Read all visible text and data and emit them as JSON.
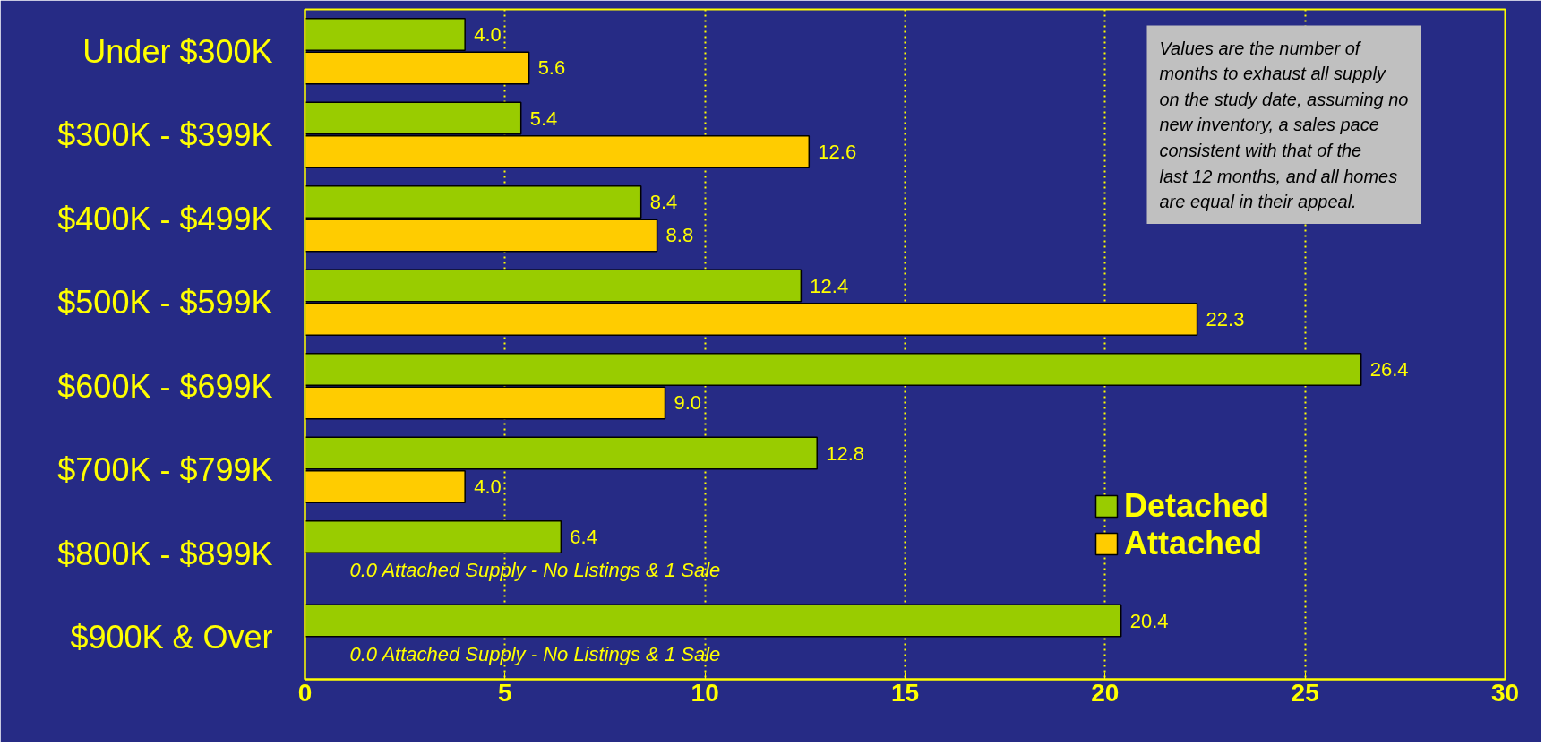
{
  "chart_data": {
    "type": "bar",
    "orientation": "horizontal",
    "categories": [
      "Under $300K",
      "$300K - $399K",
      "$400K - $499K",
      "$500K - $599K",
      "$600K - $699K",
      "$700K - $799K",
      "$800K - $899K",
      "$900K & Over"
    ],
    "series": [
      {
        "name": "Detached",
        "color": "#99cc00",
        "values": [
          4.0,
          5.4,
          8.4,
          12.4,
          26.4,
          12.8,
          6.4,
          20.4
        ],
        "value_labels": [
          "4.0",
          "5.4",
          "8.4",
          "12.4",
          "26.4",
          "12.8",
          "6.4",
          "20.4"
        ]
      },
      {
        "name": "Attached",
        "color": "#ffcc00",
        "values": [
          5.6,
          12.6,
          8.8,
          22.3,
          9.0,
          4.0,
          null,
          null
        ],
        "value_labels": [
          "5.6",
          "12.6",
          "8.8",
          "22.3",
          "9.0",
          "4.0",
          null,
          null
        ]
      }
    ],
    "xlim": [
      0,
      30
    ],
    "xticks": [
      0,
      5,
      10,
      15,
      20,
      25,
      30
    ],
    "grid": "x",
    "legend": "right",
    "annotations": [
      "Values are the number of months to exhaust all supply on the study date, assuming no new inventory, a sales pace consistent with that of the last 12 months, and all homes are equal in their appeal.",
      {
        "text": "0.0 Attached Supply -  No Listings & 1 Sale",
        "x": 0,
        "y": "$800K - $899K"
      },
      {
        "text": "0.0 Attached Supply -  No Listings & 1 Sale",
        "x": 0,
        "y": "$900K & Over"
      }
    ]
  }
}
